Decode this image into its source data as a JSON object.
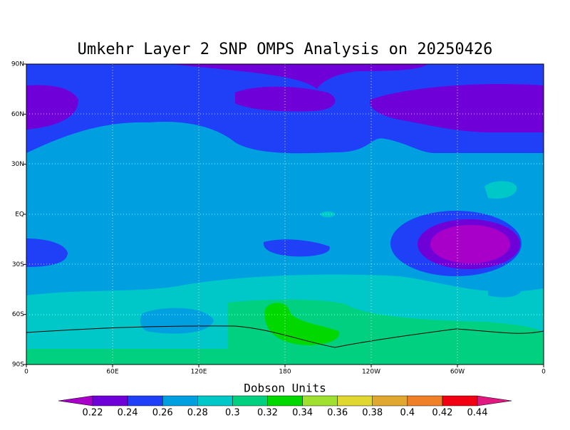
{
  "map": {
    "title": "Umkehr Layer 2 SNP OMPS Analysis on 20250426",
    "lon_labels": [
      "0",
      "60E",
      "120E",
      "180",
      "120W",
      "60W",
      "0"
    ],
    "lat_labels": [
      "90N",
      "60N",
      "30N",
      "EQ",
      "30S",
      "60S",
      "90S"
    ],
    "colorbar": {
      "title": "Dobson Units",
      "levels": [
        0.22,
        0.24,
        0.26,
        0.28,
        0.3,
        0.32,
        0.34,
        0.36,
        0.38,
        0.4,
        0.42,
        0.44
      ],
      "colors": [
        "#a800c8",
        "#7000d8",
        "#2040f8",
        "#00a0e0",
        "#00c8c8",
        "#00d080",
        "#00d800",
        "#a0e030",
        "#e0d830",
        "#e0a830",
        "#f08028",
        "#f00010",
        "#e01880"
      ]
    }
  }
}
